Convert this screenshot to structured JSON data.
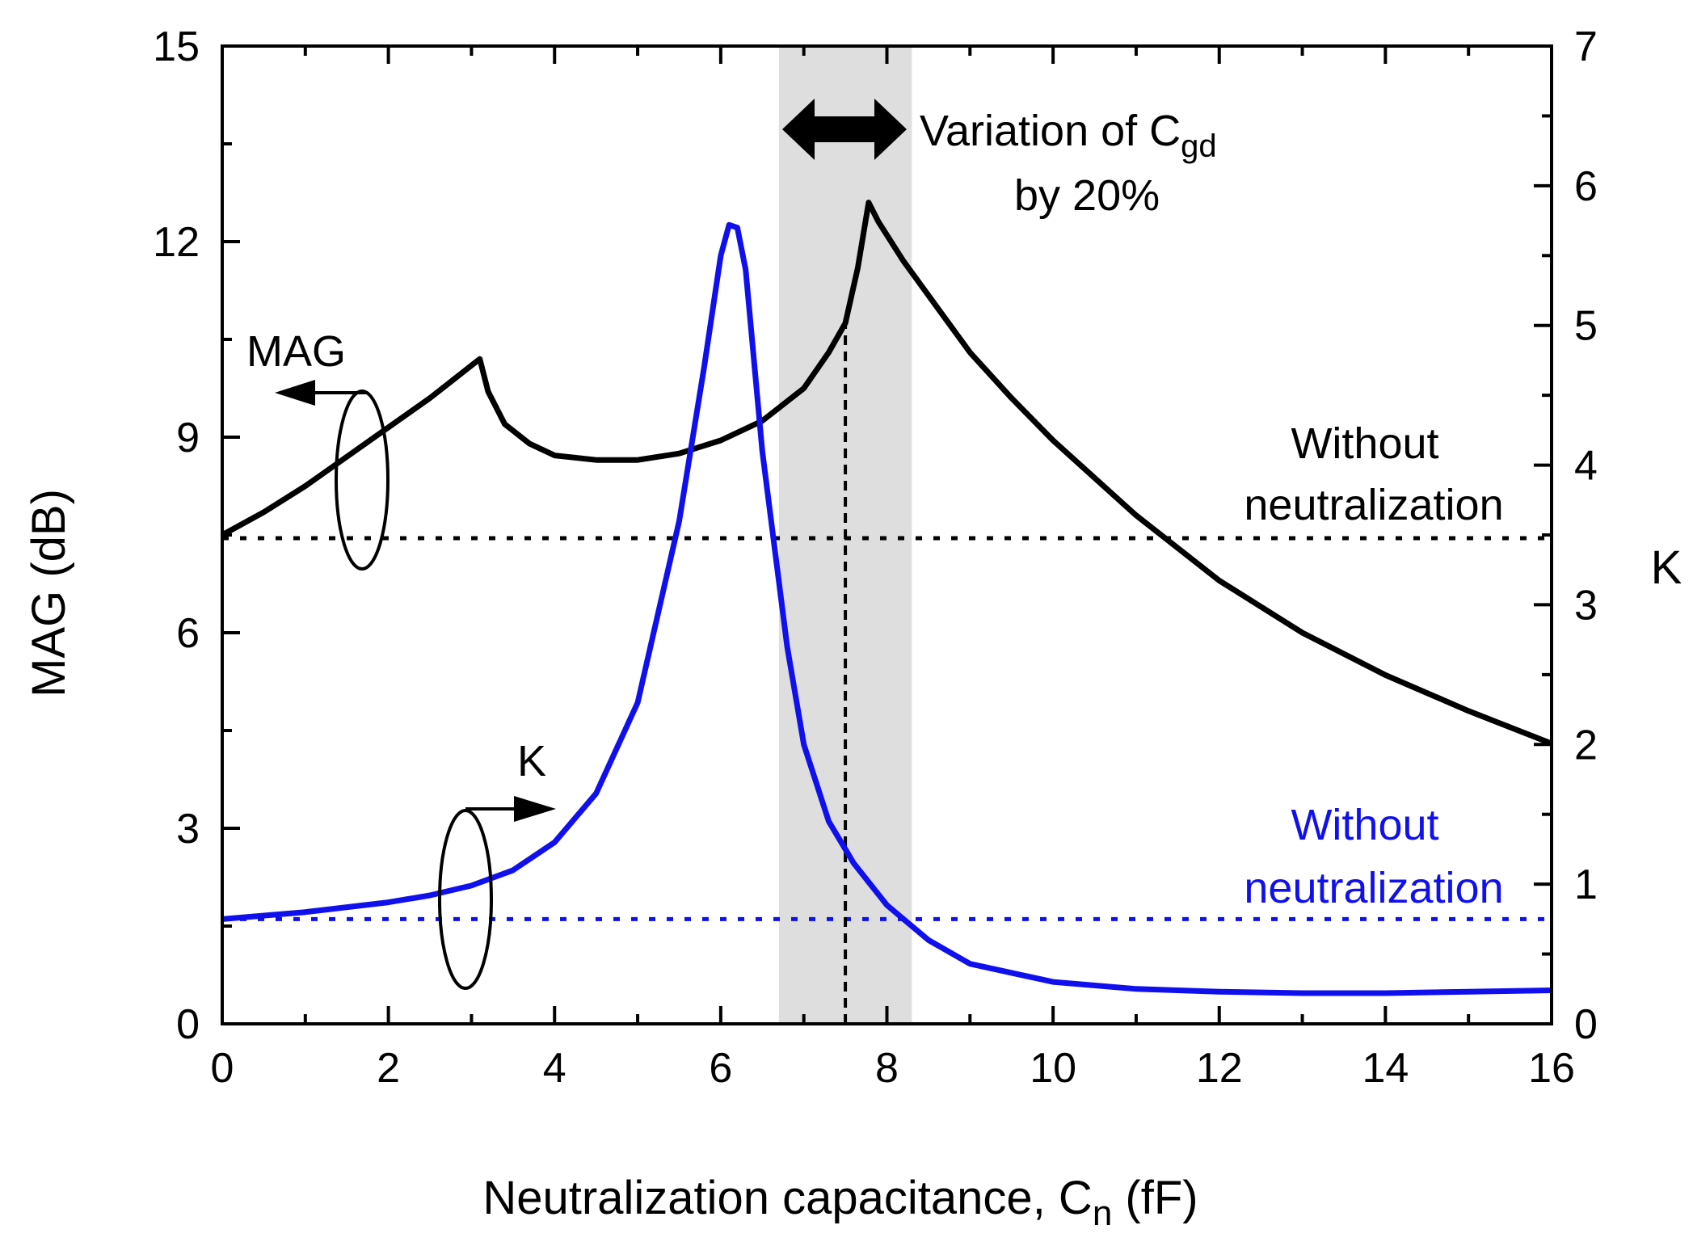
{
  "chart_data": {
    "type": "line",
    "xlabel": "Neutralization capacitance, C",
    "xlabel_subscript": "n",
    "xlabel_unit": " (fF)",
    "ylabel": "MAG (dB)",
    "y2label": "K",
    "xlim": [
      0,
      16
    ],
    "ylim": [
      0,
      15
    ],
    "y2lim": [
      0,
      7
    ],
    "x_ticks": [
      0,
      2,
      4,
      6,
      8,
      10,
      12,
      14,
      16
    ],
    "y_ticks": [
      0,
      3,
      6,
      9,
      12,
      15
    ],
    "y2_ticks": [
      0,
      1,
      2,
      3,
      4,
      5,
      6,
      7
    ],
    "grid": false,
    "series": [
      {
        "name": "MAG",
        "axis": "left",
        "color": "#000000",
        "x": [
          0,
          0.5,
          1.0,
          1.5,
          2.0,
          2.5,
          2.8,
          3.0,
          3.1,
          3.2,
          3.4,
          3.7,
          4.0,
          4.5,
          5.0,
          5.5,
          6.0,
          6.5,
          7.0,
          7.3,
          7.5,
          7.65,
          7.78,
          7.9,
          8.2,
          8.6,
          9.0,
          9.5,
          10.0,
          11.0,
          12.0,
          13.0,
          14.0,
          15.0,
          16.0
        ],
        "values": [
          7.5,
          7.85,
          8.25,
          8.7,
          9.15,
          9.6,
          9.9,
          10.1,
          10.2,
          9.7,
          9.2,
          8.9,
          8.72,
          8.65,
          8.65,
          8.75,
          8.95,
          9.25,
          9.75,
          10.3,
          10.75,
          11.6,
          12.6,
          12.3,
          11.7,
          11.0,
          10.3,
          9.6,
          8.95,
          7.8,
          6.8,
          6.0,
          5.35,
          4.8,
          4.3
        ]
      },
      {
        "name": "K",
        "axis": "right",
        "color": "#1010ee",
        "x": [
          0,
          1.0,
          2.0,
          2.5,
          3.0,
          3.5,
          4.0,
          4.5,
          5.0,
          5.5,
          5.8,
          6.0,
          6.1,
          6.2,
          6.3,
          6.5,
          6.8,
          7.0,
          7.3,
          7.6,
          8.0,
          8.5,
          9.0,
          10.0,
          11.0,
          12.0,
          13.0,
          14.0,
          15.0,
          16.0
        ],
        "values": [
          0.75,
          0.8,
          0.87,
          0.92,
          0.99,
          1.1,
          1.3,
          1.65,
          2.3,
          3.6,
          4.7,
          5.5,
          5.72,
          5.7,
          5.4,
          4.1,
          2.7,
          2.0,
          1.45,
          1.15,
          0.85,
          0.6,
          0.43,
          0.3,
          0.25,
          0.23,
          0.22,
          0.22,
          0.23,
          0.24
        ]
      }
    ],
    "reference_lines": [
      {
        "axis": "left",
        "value": 7.45,
        "color": "#000000",
        "style": "dotted"
      },
      {
        "axis": "right",
        "value": 0.75,
        "color": "#1010ee",
        "style": "dotted"
      },
      {
        "axis": "x",
        "value": 7.5,
        "color": "#000000",
        "style": "dashed"
      }
    ],
    "shaded_region": {
      "x": [
        6.7,
        8.3
      ],
      "color": "#dedede"
    },
    "annotations": {
      "variation_line1_prefix": "Variation of C",
      "variation_line1_subscript": "gd",
      "variation_line2": "by 20%",
      "mag_label": "MAG",
      "k_label": "K",
      "mag_baseline_line1": "Without",
      "mag_baseline_line2": "neutralization",
      "k_baseline_line1": "Without",
      "k_baseline_line2": "neutralization"
    }
  }
}
